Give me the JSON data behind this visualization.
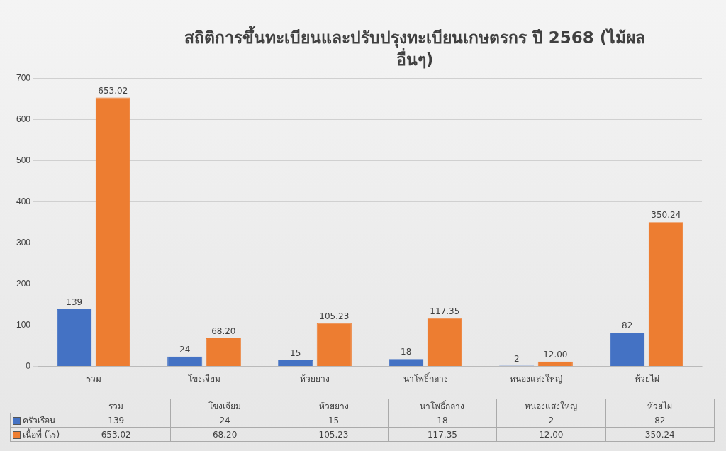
{
  "chart_data": {
    "type": "bar",
    "title": "สถิติการขึ้นทะเบียนและปรับปรุงทะเบียนเกษตรกร ปี 2568 (ไม้ผลอื่นๆ)",
    "categories": [
      "รวม",
      "โขงเจียม",
      "ห้วยยาง",
      "นาโพธิ์กลาง",
      "หนองแสงใหญ่",
      "ห้วยไผ่"
    ],
    "series": [
      {
        "name": "ครัวเรือน",
        "color": "#4472c4",
        "values": [
          139,
          24,
          15,
          18,
          2,
          82
        ],
        "value_labels": [
          "139",
          "24",
          "15",
          "18",
          "2",
          "82"
        ]
      },
      {
        "name": "เนื้อที่ (ไร่)",
        "color": "#ed7d31",
        "values": [
          653.02,
          68.2,
          105.23,
          117.35,
          12.0,
          350.24
        ],
        "value_labels": [
          "653.02",
          "68.20",
          "105.23",
          "117.35",
          "12.00",
          "350.24"
        ]
      }
    ],
    "ylim": [
      0,
      700
    ],
    "yticks": [
      0,
      100,
      200,
      300,
      400,
      500,
      600,
      700
    ],
    "grid": "y",
    "legend": "bottom"
  }
}
